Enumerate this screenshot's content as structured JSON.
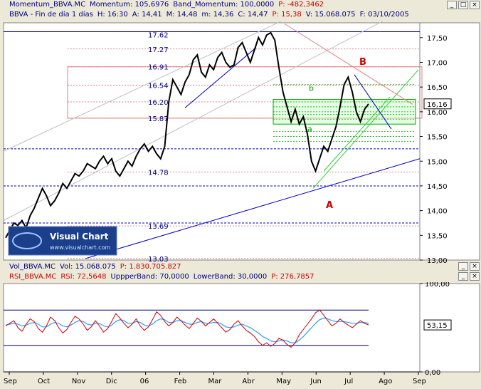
{
  "window": {
    "title_parts": [
      {
        "text": "Momentum_BBVA.MC",
        "color": "#000080"
      },
      {
        "text": "Momentum: 105,6976",
        "color": "#000080"
      },
      {
        "text": "Band_Momentum: 100,0000",
        "color": "#000080"
      },
      {
        "text": "P: -482,3462",
        "color": "#cc0000"
      }
    ],
    "buttons": [
      "_",
      "□",
      "×"
    ]
  },
  "price_header": {
    "parts": [
      {
        "text": "BBVA - Fin de día 1 días",
        "color": "#000080"
      },
      {
        "text": "H: 16:30",
        "color": "#000080"
      },
      {
        "text": "A: 14,41",
        "color": "#000080"
      },
      {
        "text": "M: 14,48",
        "color": "#000080"
      },
      {
        "text": "m: 14,36",
        "color": "#000080"
      },
      {
        "text": "C: 14,47",
        "color": "#000080"
      },
      {
        "text": "P: 15,38",
        "color": "#cc0000"
      },
      {
        "text": "V: 15.068.075",
        "color": "#000080"
      },
      {
        "text": "F: 03/10/2005",
        "color": "#000080"
      }
    ]
  },
  "volume_header": {
    "parts": [
      {
        "text": "Vol_BBVA.MC",
        "color": "#000080"
      },
      {
        "text": "Vol: 15.068.075",
        "color": "#000080"
      },
      {
        "text": "P: 1.830.705.827",
        "color": "#cc0000"
      }
    ]
  },
  "rsi_header": {
    "parts": [
      {
        "text": "RSI_BBVA.MC",
        "color": "#cc0000"
      },
      {
        "text": "RSI: 72,5648",
        "color": "#cc0000"
      },
      {
        "text": "UppperBand: 70,0000",
        "color": "#000080"
      },
      {
        "text": "LowerBand: 30,0000",
        "color": "#000080"
      },
      {
        "text": "P: 276,7857",
        "color": "#cc0000"
      }
    ]
  },
  "logo": {
    "name": "Visual Chart",
    "url": "www.visualchart.com"
  },
  "chart_data": [
    {
      "type": "line",
      "series_name": "BBVA",
      "ylim": [
        13.0,
        17.8
      ],
      "y_ticks": [
        "13,00",
        "13,50",
        "14,00",
        "14,50",
        "15,00",
        "15,50",
        "16,00",
        "16,50",
        "17,00",
        "17,50"
      ],
      "y_tick_values": [
        13.0,
        13.5,
        14.0,
        14.5,
        15.0,
        15.5,
        16.0,
        16.5,
        17.0,
        17.5
      ],
      "last_value_label": "16,16",
      "last_value": 16.16,
      "fib_labels": [
        {
          "text": "17.62",
          "value": 17.62
        },
        {
          "text": "17.27",
          "value": 17.27
        },
        {
          "text": "16.91",
          "value": 16.91
        },
        {
          "text": "16.54",
          "value": 16.54
        },
        {
          "text": "16.20",
          "value": 16.2
        },
        {
          "text": "15.87",
          "value": 15.87
        },
        {
          "text": "14.78",
          "value": 14.78
        },
        {
          "text": "13.69",
          "value": 13.69
        },
        {
          "text": "13.03",
          "value": 13.03
        }
      ],
      "wave_labels": [
        {
          "text": "B",
          "color": "#cc0000"
        },
        {
          "text": "A",
          "color": "#cc0000"
        },
        {
          "text": "b",
          "color": "#009900"
        },
        {
          "text": "a",
          "color": "#009900"
        }
      ],
      "x_labels": [
        "Sep",
        "Oct",
        "Nov",
        "Dic",
        "06",
        "Feb",
        "Mar",
        "Abr",
        "May",
        "Jun",
        "Jul",
        "Ago",
        "Sep"
      ],
      "values": [
        13.45,
        13.6,
        13.75,
        13.7,
        13.8,
        13.65,
        13.9,
        14.05,
        14.25,
        14.45,
        14.3,
        14.1,
        14.2,
        14.35,
        14.55,
        14.45,
        14.6,
        14.75,
        14.7,
        14.8,
        14.95,
        14.9,
        14.85,
        15.0,
        15.1,
        14.95,
        15.05,
        14.8,
        14.7,
        14.85,
        15.0,
        14.9,
        15.1,
        15.25,
        15.35,
        15.2,
        15.3,
        15.15,
        15.05,
        15.3,
        16.2,
        16.65,
        16.5,
        16.35,
        16.6,
        16.75,
        17.05,
        17.15,
        16.8,
        16.7,
        16.95,
        16.85,
        17.1,
        17.2,
        17.0,
        16.9,
        16.95,
        17.3,
        17.4,
        17.2,
        17.0,
        17.25,
        17.5,
        17.35,
        17.55,
        17.6,
        17.45,
        16.9,
        16.4,
        16.1,
        15.8,
        16.05,
        15.75,
        15.9,
        15.55,
        15.0,
        14.8,
        15.05,
        15.3,
        15.2,
        15.45,
        15.7,
        16.1,
        16.55,
        16.7,
        16.4,
        16.0,
        15.8,
        16.05,
        16.16
      ],
      "fib_levels": [
        17.62,
        17.27,
        16.91,
        16.54,
        16.2,
        15.87,
        14.78,
        13.69,
        13.03
      ]
    },
    {
      "type": "line",
      "series_name": "RSI",
      "ylim": [
        0,
        100
      ],
      "y_ticks": [
        "100,00",
        "0,00"
      ],
      "y_tick_values": [
        100,
        0
      ],
      "upper_band": 70,
      "lower_band": 30,
      "last_value_label": "53,15",
      "last_value": 53.15,
      "values": [
        52,
        55,
        58,
        50,
        46,
        54,
        60,
        57,
        49,
        45,
        52,
        62,
        58,
        50,
        44,
        48,
        56,
        63,
        60,
        54,
        47,
        51,
        58,
        52,
        45,
        49,
        57,
        66,
        61,
        55,
        50,
        54,
        60,
        52,
        47,
        51,
        59,
        68,
        64,
        57,
        52,
        56,
        62,
        58,
        53,
        49,
        55,
        61,
        57,
        52,
        56,
        60,
        55,
        50,
        45,
        48,
        54,
        58,
        52,
        47,
        44,
        40,
        34,
        30,
        33,
        29,
        32,
        38,
        36,
        31,
        28,
        33,
        42,
        48,
        54,
        60,
        67,
        70,
        64,
        58,
        52,
        55,
        60,
        56,
        53,
        50,
        54,
        58,
        55,
        53.15
      ],
      "smooth": [
        53,
        54,
        55,
        54,
        52,
        53,
        55,
        56,
        54,
        51,
        51,
        54,
        56,
        55,
        52,
        51,
        53,
        56,
        58,
        57,
        54,
        53,
        55,
        55,
        52,
        51,
        53,
        57,
        59,
        58,
        55,
        55,
        57,
        56,
        53,
        52,
        54,
        58,
        60,
        59,
        56,
        56,
        58,
        58,
        56,
        54,
        54,
        56,
        57,
        55,
        55,
        56,
        56,
        54,
        51,
        50,
        51,
        53,
        54,
        52,
        50,
        47,
        44,
        40,
        38,
        35,
        34,
        35,
        36,
        35,
        33,
        33,
        36,
        40,
        45,
        50,
        55,
        59,
        61,
        60,
        58,
        57,
        57,
        57,
        56,
        55,
        55,
        56,
        56,
        55
      ]
    }
  ]
}
